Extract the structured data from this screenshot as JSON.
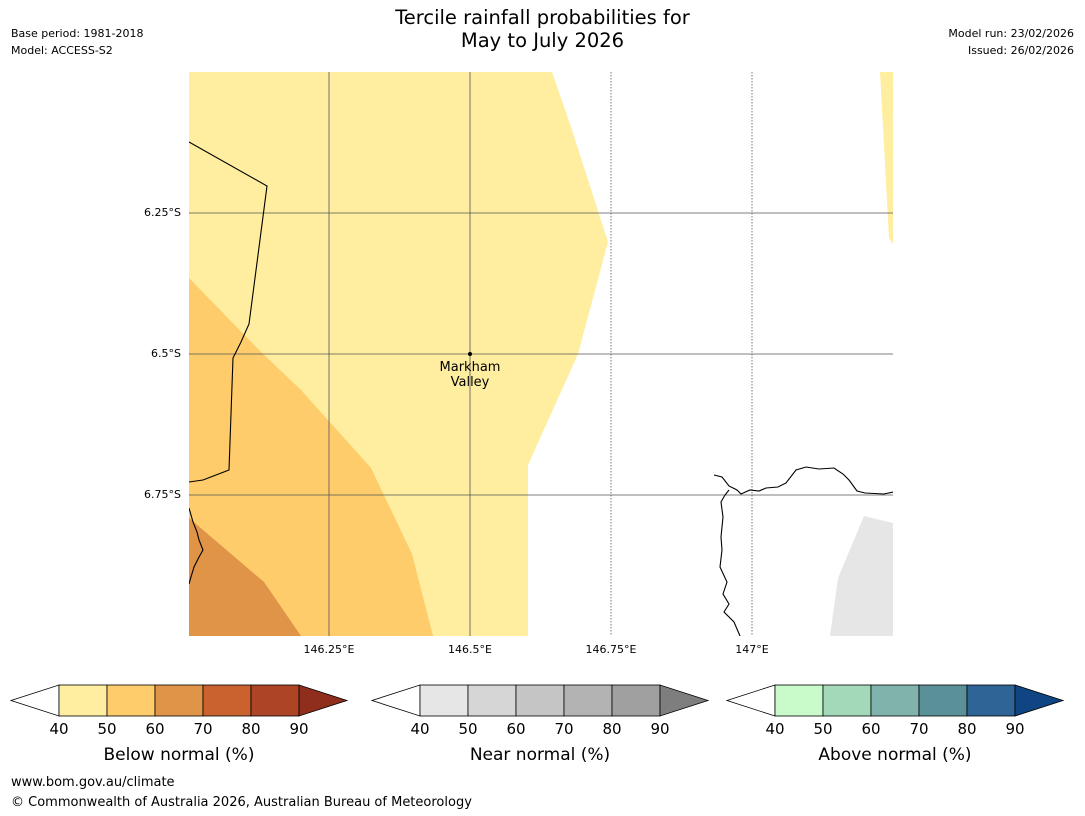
{
  "header": {
    "title_line1": "Tercile rainfall probabilities for",
    "title_line2": "May to July 2026",
    "base_period": "Base period: 1981-2018",
    "model": "Model: ACCESS-S2",
    "model_run": "Model run: 23/02/2026",
    "issued": "Issued: 26/02/2026"
  },
  "map": {
    "lat_labels": [
      "6.25°S",
      "6.5°S",
      "6.75°S"
    ],
    "lon_labels": [
      "146.25°E",
      "146.5°E",
      "146.75°E",
      "147°E"
    ],
    "place": {
      "name_line1": "Markham",
      "name_line2": "Valley"
    },
    "colors": {
      "below_40_50": "#ffeda0",
      "below_50_60": "#fecc6b",
      "below_60_70": "#e09448",
      "near_40_50": "#e6e6e6",
      "land_line": "#000000",
      "grid": "#555555"
    }
  },
  "colorbars": [
    {
      "title": "Below normal (%)",
      "ticks": [
        "40",
        "50",
        "60",
        "70",
        "80",
        "90"
      ],
      "colors": [
        "#ffeda0",
        "#fecc6b",
        "#e09448",
        "#c9622f",
        "#ad4426",
        "#8f2e1d"
      ]
    },
    {
      "title": "Near normal (%)",
      "ticks": [
        "40",
        "50",
        "60",
        "70",
        "80",
        "90"
      ],
      "colors": [
        "#e6e6e6",
        "#d6d6d6",
        "#c5c5c5",
        "#b3b3b3",
        "#a0a0a0",
        "#7e7e7e"
      ]
    },
    {
      "title": "Above normal (%)",
      "ticks": [
        "40",
        "50",
        "60",
        "70",
        "80",
        "90"
      ],
      "colors": [
        "#c9fac9",
        "#a3d9b9",
        "#7fb3ac",
        "#5a9199",
        "#2f6496",
        "#0f4582"
      ]
    }
  ],
  "footer": {
    "url": "www.bom.gov.au/climate",
    "copyright": "© Commonwealth of Australia 2026, Australian Bureau of Meteorology"
  }
}
